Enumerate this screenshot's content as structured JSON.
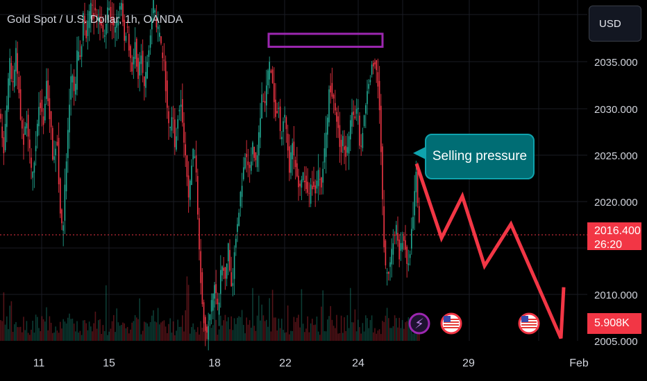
{
  "header": {
    "title": "Gold Spot / U.S. Dollar, 1h, OANDA",
    "currency": "USD"
  },
  "annotation": {
    "text": "Selling pressure"
  },
  "last_price": {
    "price": "2016.400",
    "countdown": "26:20",
    "color": "#f23645"
  },
  "volume_label": {
    "value": "5.908K"
  },
  "colors": {
    "bull": "#22ab94",
    "bear": "#f23645",
    "box": "#9c27b0",
    "arrow": "#f23645",
    "callout": "#006d74"
  },
  "events": [
    {
      "icon": "lightning-icon",
      "label": "⚡"
    },
    {
      "icon": "us-flag-icon",
      "label": ""
    },
    {
      "icon": "us-flag-icon",
      "label": ""
    }
  ],
  "chart_data": {
    "type": "candlestick",
    "title": "Gold Spot / U.S. Dollar, 1h, OANDA",
    "x_ticks": [
      "11",
      "15",
      "18",
      "22",
      "24",
      "29",
      "Feb"
    ],
    "y_ticks": [
      "2035.000",
      "2030.000",
      "2025.000",
      "2020.000",
      "2010.000",
      "2005.000"
    ],
    "ylim": [
      2004.9,
      2040.4
    ],
    "grid": true,
    "price_path": [
      [
        0,
        2030
      ],
      [
        6,
        2025
      ],
      [
        10,
        2029
      ],
      [
        15,
        2035
      ],
      [
        19,
        2032
      ],
      [
        24,
        2036
      ],
      [
        29,
        2031
      ],
      [
        34,
        2026
      ],
      [
        40,
        2029
      ],
      [
        47,
        2022
      ],
      [
        52,
        2026
      ],
      [
        58,
        2031
      ],
      [
        63,
        2028
      ],
      [
        68,
        2033
      ],
      [
        73,
        2029
      ],
      [
        78,
        2024
      ],
      [
        83,
        2027
      ],
      [
        87,
        2020
      ],
      [
        91,
        2016
      ],
      [
        95,
        2022
      ],
      [
        100,
        2029
      ],
      [
        104,
        2034
      ],
      [
        109,
        2031
      ],
      [
        113,
        2037
      ],
      [
        117,
        2035
      ],
      [
        121,
        2040
      ],
      [
        125,
        2038
      ],
      [
        129,
        2040
      ],
      [
        133,
        2041
      ],
      [
        137,
        2040
      ],
      [
        141,
        2040
      ],
      [
        146,
        2039
      ],
      [
        151,
        2038
      ],
      [
        156,
        2041
      ],
      [
        161,
        2040
      ],
      [
        166,
        2038
      ],
      [
        171,
        2040
      ],
      [
        176,
        2041
      ],
      [
        180,
        2037
      ],
      [
        184,
        2039
      ],
      [
        188,
        2036
      ],
      [
        192,
        2034
      ],
      [
        196,
        2037
      ],
      [
        200,
        2033
      ],
      [
        204,
        2036
      ],
      [
        208,
        2032
      ],
      [
        212,
        2034
      ],
      [
        217,
        2038
      ],
      [
        222,
        2041
      ],
      [
        227,
        2039
      ],
      [
        232,
        2037
      ],
      [
        237,
        2035
      ],
      [
        241,
        2031
      ],
      [
        245,
        2027
      ],
      [
        249,
        2030
      ],
      [
        253,
        2026
      ],
      [
        257,
        2029
      ],
      [
        261,
        2031
      ],
      [
        265,
        2027
      ],
      [
        269,
        2024
      ],
      [
        273,
        2020
      ],
      [
        277,
        2024
      ],
      [
        281,
        2026
      ],
      [
        284,
        2022
      ],
      [
        287,
        2017
      ],
      [
        290,
        2012
      ],
      [
        294,
        2008
      ],
      [
        298,
        2005
      ],
      [
        302,
        2007
      ],
      [
        306,
        2009
      ],
      [
        310,
        2011
      ],
      [
        315,
        2008
      ],
      [
        320,
        2013
      ],
      [
        325,
        2012
      ],
      [
        330,
        2015
      ],
      [
        335,
        2010
      ],
      [
        340,
        2016
      ],
      [
        345,
        2019
      ],
      [
        350,
        2022
      ],
      [
        355,
        2025
      ],
      [
        360,
        2023
      ],
      [
        365,
        2026
      ],
      [
        370,
        2024
      ],
      [
        374,
        2027
      ],
      [
        378,
        2031
      ],
      [
        382,
        2030
      ],
      [
        386,
        2033
      ],
      [
        390,
        2035
      ],
      [
        394,
        2032
      ],
      [
        398,
        2029
      ],
      [
        402,
        2030
      ],
      [
        406,
        2026
      ],
      [
        410,
        2030
      ],
      [
        414,
        2027
      ],
      [
        418,
        2023
      ],
      [
        422,
        2026
      ],
      [
        426,
        2024
      ],
      [
        430,
        2022
      ],
      [
        434,
        2021
      ],
      [
        438,
        2023
      ],
      [
        442,
        2022
      ],
      [
        446,
        2020
      ],
      [
        450,
        2022
      ],
      [
        455,
        2021
      ],
      [
        460,
        2023
      ],
      [
        464,
        2022
      ],
      [
        468,
        2025
      ],
      [
        472,
        2028
      ],
      [
        476,
        2033
      ],
      [
        480,
        2031
      ],
      [
        484,
        2030
      ],
      [
        488,
        2028
      ],
      [
        492,
        2025
      ],
      [
        496,
        2027
      ],
      [
        500,
        2024
      ],
      [
        504,
        2027
      ],
      [
        508,
        2030
      ],
      [
        512,
        2029
      ],
      [
        516,
        2031
      ],
      [
        520,
        2025
      ],
      [
        524,
        2028
      ],
      [
        528,
        2030
      ],
      [
        532,
        2033
      ],
      [
        536,
        2034
      ],
      [
        540,
        2035
      ],
      [
        544,
        2034
      ],
      [
        547,
        2032
      ],
      [
        549,
        2027
      ],
      [
        551,
        2023
      ],
      [
        553,
        2017
      ],
      [
        556,
        2013
      ],
      [
        560,
        2012
      ],
      [
        564,
        2014
      ],
      [
        568,
        2016
      ],
      [
        572,
        2017
      ],
      [
        576,
        2014
      ],
      [
        580,
        2016
      ],
      [
        584,
        2015
      ],
      [
        588,
        2013
      ],
      [
        592,
        2015
      ],
      [
        596,
        2018
      ],
      [
        600,
        2024
      ],
      [
        603,
        2019
      ],
      [
        606,
        2016
      ]
    ],
    "annotations": {
      "resistance_box": {
        "x": [
          387,
          551
        ],
        "y": [
          2036.6,
          2038.0
        ]
      },
      "forecast_path": [
        [
          600,
          2024
        ],
        [
          636,
          2016
        ],
        [
          666,
          2020.5
        ],
        [
          698,
          2013
        ],
        [
          736,
          2017.5
        ],
        [
          808,
          2005.2
        ],
        [
          812,
          2010.7
        ]
      ]
    }
  }
}
